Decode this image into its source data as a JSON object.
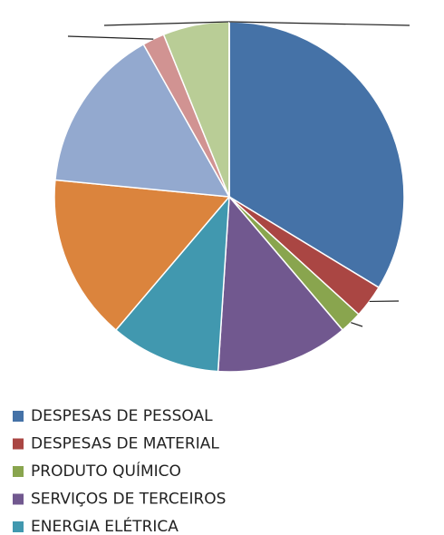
{
  "chart_data": {
    "type": "pie",
    "categories": [
      "DESPESAS DE PESSOAL",
      "DESPESAS DE MATERIAL",
      "PRODUTO QUÍMICO",
      "SERVIÇOS DE TERCEIROS",
      "ENERGIA ELÉTRICA",
      null,
      null,
      null,
      null,
      null,
      null
    ],
    "values": [
      33,
      3,
      2,
      12,
      10,
      15,
      15,
      2,
      6,
      0,
      0
    ],
    "colors": [
      "#4572a7",
      "#aa4643",
      "#89a54e",
      "#71588f",
      "#4198af",
      "#db843d",
      "#93a9cf",
      "#d19392",
      "#b9cd96",
      "#a99bbd",
      "#92a8cd"
    ]
  }
}
